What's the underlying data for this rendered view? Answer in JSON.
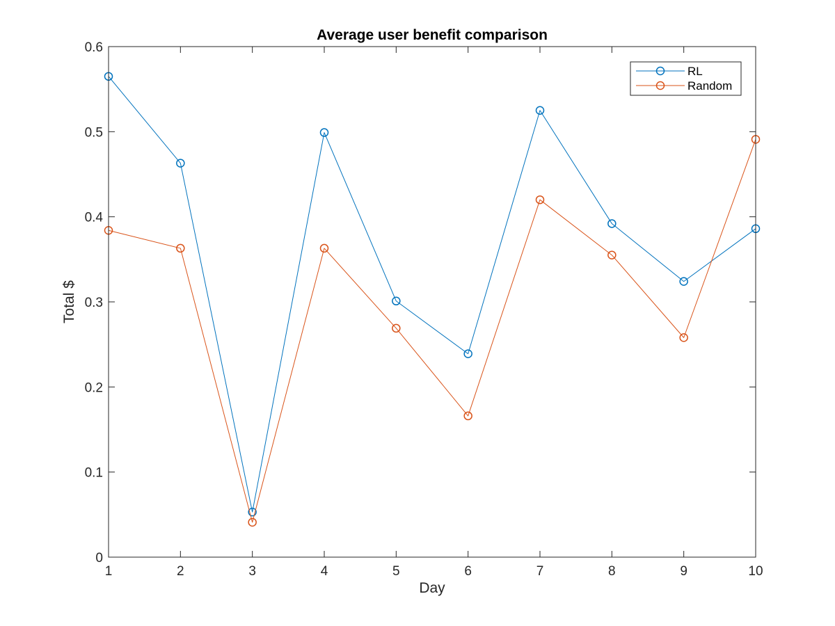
{
  "chart_data": {
    "type": "line",
    "title": "Average user benefit comparison",
    "xlabel": "Day",
    "ylabel": "Total $",
    "x": [
      1,
      2,
      3,
      4,
      5,
      6,
      7,
      8,
      9,
      10
    ],
    "xlim": [
      1,
      10
    ],
    "ylim": [
      0,
      0.6
    ],
    "xticks": [
      "1",
      "2",
      "3",
      "4",
      "5",
      "6",
      "7",
      "8",
      "9",
      "10"
    ],
    "yticks": [
      "0",
      "0.1",
      "0.2",
      "0.3",
      "0.4",
      "0.5",
      "0.6"
    ],
    "grid": false,
    "legend_position": "top-right",
    "marker": "circle",
    "series": [
      {
        "name": "RL",
        "color": "#0072bd",
        "values": [
          0.565,
          0.463,
          0.053,
          0.499,
          0.301,
          0.239,
          0.525,
          0.392,
          0.324,
          0.386
        ]
      },
      {
        "name": "Random",
        "color": "#d95319",
        "values": [
          0.384,
          0.363,
          0.041,
          0.363,
          0.269,
          0.166,
          0.42,
          0.355,
          0.258,
          0.491
        ]
      }
    ]
  }
}
